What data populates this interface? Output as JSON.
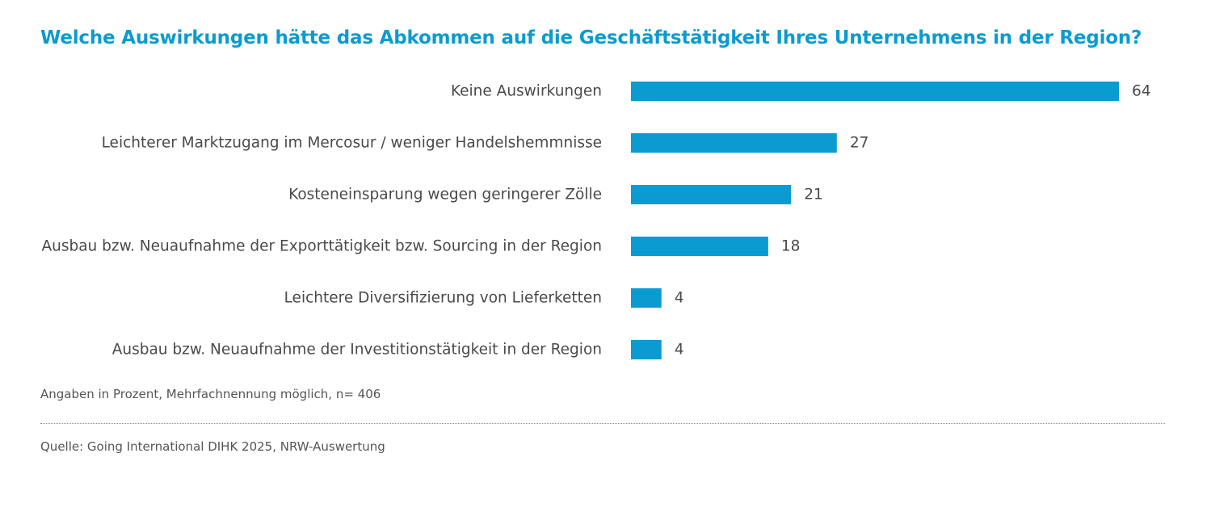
{
  "chart_data": {
    "type": "bar",
    "orientation": "horizontal",
    "title": "Welche Auswirkungen hätte das Abkommen auf die Geschäftstätigkeit Ihres Unternehmens in der Region?",
    "categories": [
      "Keine Auswirkungen",
      "Leichterer Marktzugang im Mercosur / weniger Handelshemmnisse",
      "Kosteneinsparung wegen geringerer Zölle",
      "Ausbau bzw. Neuaufnahme der Exporttätigkeit bzw. Sourcing in der Region",
      "Leichtere Diversifizierung von Lieferketten",
      "Ausbau bzw. Neuaufnahme der Investitionstätigkeit in der Region"
    ],
    "values": [
      64,
      27,
      21,
      18,
      4,
      4
    ],
    "value_labels": [
      "64",
      "27",
      "21",
      "18",
      "4",
      "4"
    ],
    "xlim": [
      0,
      64
    ],
    "grid": false,
    "legend": "none",
    "bar_color": "#0a9bd1"
  },
  "footer": {
    "note": "Angaben in Prozent, Mehrfachnennung möglich, n= 406",
    "source": "Quelle: Going International DIHK 2025, NRW-Auswertung"
  }
}
